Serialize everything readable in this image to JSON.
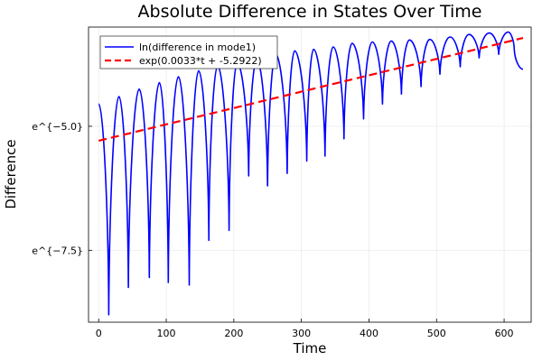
{
  "chart_data": {
    "type": "line",
    "title": "Absolute Difference in States Over Time",
    "xlabel": "Time",
    "ylabel": "Difference",
    "xlim": [
      -15,
      640
    ],
    "ylim": [
      -8.95,
      -3.0
    ],
    "x_ticks": [
      0,
      100,
      200,
      300,
      400,
      500,
      600
    ],
    "x_tick_labels": [
      "0",
      "100",
      "200",
      "300",
      "400",
      "500",
      "600"
    ],
    "y_ticks": [
      -5.0,
      -7.5
    ],
    "y_tick_labels": [
      "e^{−5.0}",
      "e^{−7.5}"
    ],
    "grid": true,
    "legend_position": "top-left",
    "series": [
      {
        "name": "ln(difference in mode1)",
        "color": "#0000ff",
        "style": "solid",
        "peaks": [
          [
            0,
            -4.55
          ],
          [
            30,
            -4.4
          ],
          [
            60,
            -4.25
          ],
          [
            90,
            -4.12
          ],
          [
            118,
            -4.0
          ],
          [
            148,
            -3.88
          ],
          [
            176,
            -3.78
          ],
          [
            205,
            -3.72
          ],
          [
            234,
            -3.65
          ],
          [
            262,
            -3.55
          ],
          [
            290,
            -3.48
          ],
          [
            318,
            -3.45
          ],
          [
            347,
            -3.4
          ],
          [
            375,
            -3.33
          ],
          [
            405,
            -3.3
          ],
          [
            433,
            -3.28
          ],
          [
            460,
            -3.26
          ],
          [
            490,
            -3.25
          ],
          [
            520,
            -3.2
          ],
          [
            548,
            -3.15
          ],
          [
            578,
            -3.12
          ],
          [
            606,
            -3.1
          ]
        ],
        "troughs": [
          [
            15,
            -8.8
          ],
          [
            44,
            -8.25
          ],
          [
            75,
            -8.05
          ],
          [
            103,
            -8.15
          ],
          [
            134,
            -8.2
          ],
          [
            163,
            -7.3
          ],
          [
            193,
            -7.1
          ],
          [
            222,
            -6.0
          ],
          [
            250,
            -6.2
          ],
          [
            279,
            -5.95
          ],
          [
            308,
            -5.7
          ],
          [
            335,
            -5.6
          ],
          [
            363,
            -5.25
          ],
          [
            392,
            -4.85
          ],
          [
            420,
            -4.55
          ],
          [
            448,
            -4.35
          ],
          [
            477,
            -4.2
          ],
          [
            505,
            -3.95
          ],
          [
            535,
            -3.8
          ],
          [
            563,
            -3.62
          ],
          [
            592,
            -3.55
          ],
          [
            615,
            -3.45
          ]
        ],
        "end": [
          628,
          -3.85
        ]
      },
      {
        "name": "exp(0.0033*t + -5.2922)",
        "color": "#ff0000",
        "style": "dashed",
        "slope": 0.0033,
        "intercept": -5.2922,
        "x_range": [
          0,
          628
        ]
      }
    ]
  }
}
